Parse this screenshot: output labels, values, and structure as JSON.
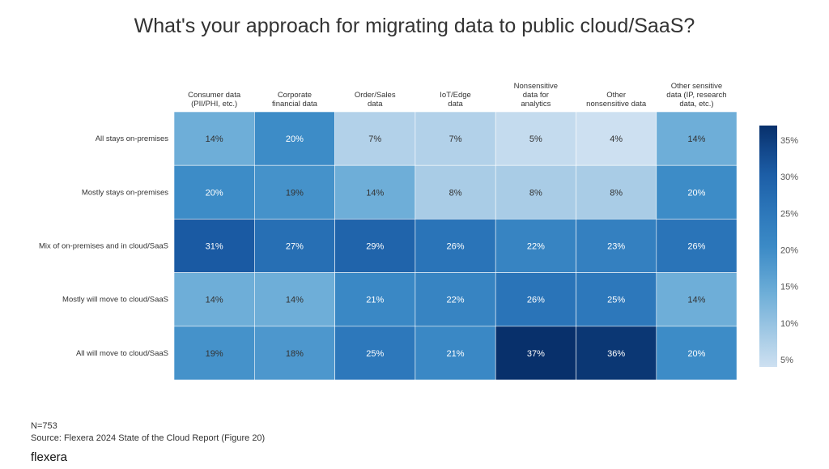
{
  "chart_data": {
    "type": "heatmap",
    "title": "What's your approach for migrating data to public cloud/SaaS?",
    "columns": [
      "Consumer data (PII/PHI, etc.)",
      "Corporate financial data",
      "Order/Sales data",
      "IoT/Edge data",
      "Nonsensitive data for analytics",
      "Other nonsensitive data",
      "Other sensitive data (IP, research data, etc.)"
    ],
    "columns_lines": [
      [
        "Consumer data",
        "(PII/PHI, etc.)"
      ],
      [
        "Corporate",
        "financial data"
      ],
      [
        "Order/Sales",
        "data"
      ],
      [
        "IoT/Edge",
        "data"
      ],
      [
        "Nonsensitive",
        "data for",
        "analytics"
      ],
      [
        "Other",
        "nonsensitive data"
      ],
      [
        "Other sensitive",
        "data (IP, research",
        "data, etc.)"
      ]
    ],
    "rows": [
      "All stays on-premises",
      "Mostly stays on-premises",
      "Mix of on-premises and in cloud/SaaS",
      "Mostly will move to cloud/SaaS",
      "All will move to cloud/SaaS"
    ],
    "values": [
      [
        14,
        20,
        7,
        7,
        5,
        4,
        14
      ],
      [
        20,
        19,
        14,
        8,
        8,
        8,
        20
      ],
      [
        31,
        27,
        29,
        26,
        22,
        23,
        26
      ],
      [
        14,
        14,
        21,
        22,
        26,
        25,
        14
      ],
      [
        19,
        18,
        25,
        21,
        37,
        36,
        20
      ]
    ],
    "unit": "%",
    "colorbar": {
      "range": [
        4,
        37
      ],
      "ticks": [
        5,
        10,
        15,
        20,
        25,
        30,
        35
      ],
      "tick_labels": [
        "5%",
        "10%",
        "15%",
        "20%",
        "25%",
        "30%",
        "35%"
      ],
      "colormap": "Blues",
      "low_color": "#cde0f1",
      "high_color": "#08306b"
    }
  },
  "footer": {
    "n": "N=753",
    "source": "Source: Flexera 2024 State of the Cloud Report (Figure 20)",
    "logo": "flexera"
  }
}
